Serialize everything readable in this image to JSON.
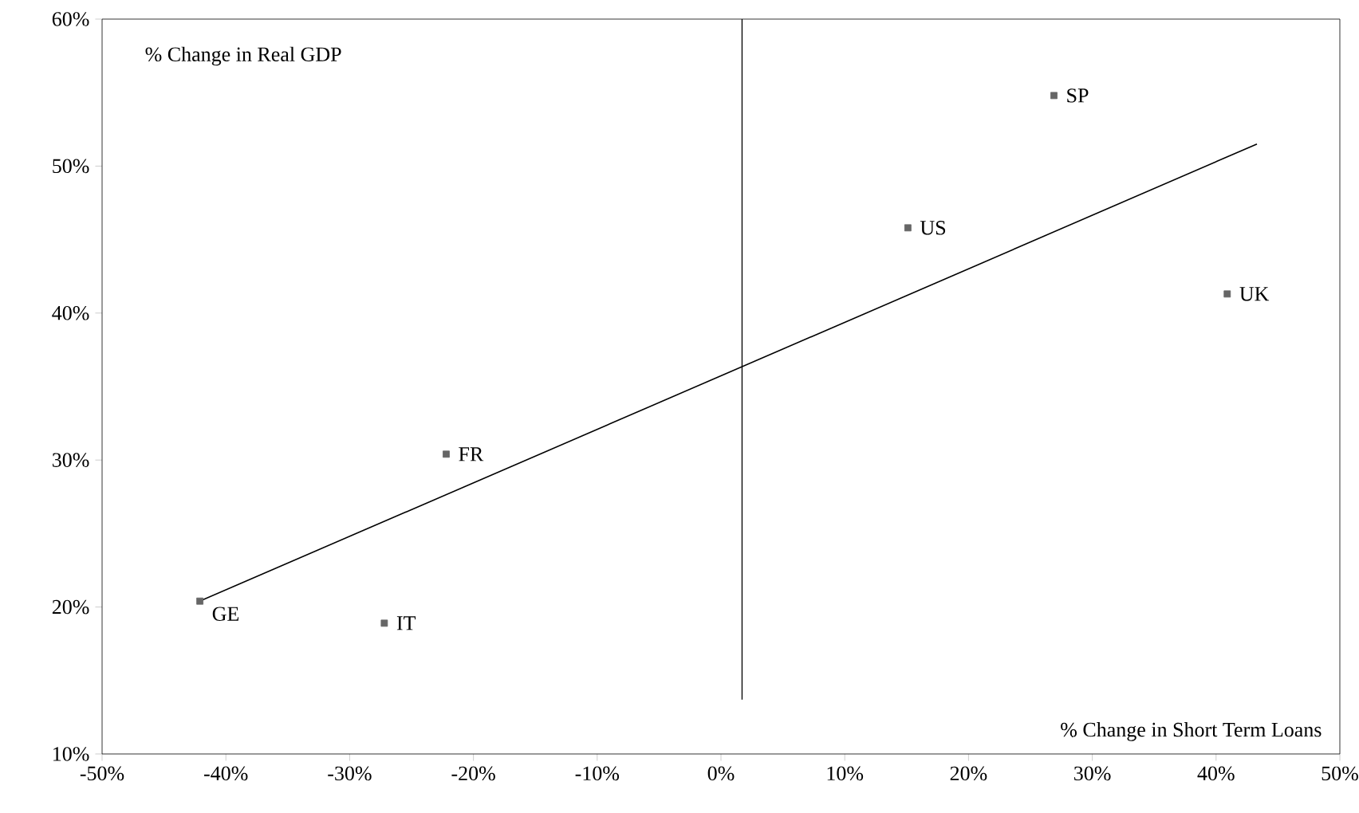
{
  "chart_data": {
    "type": "scatter",
    "xlabel": "% Change in Short Term Loans",
    "ylabel": "% Change in Real GDP",
    "xlim": [
      -50,
      50
    ],
    "ylim": [
      10,
      60
    ],
    "xticks": [
      {
        "value": -50,
        "label": "-50%"
      },
      {
        "value": -40,
        "label": "-40%"
      },
      {
        "value": -30,
        "label": "-30%"
      },
      {
        "value": -20,
        "label": "-20%"
      },
      {
        "value": -10,
        "label": "-10%"
      },
      {
        "value": 0,
        "label": "0%"
      },
      {
        "value": 10,
        "label": "10%"
      },
      {
        "value": 20,
        "label": "20%"
      },
      {
        "value": 30,
        "label": "30%"
      },
      {
        "value": 40,
        "label": "40%"
      },
      {
        "value": 50,
        "label": "50%"
      }
    ],
    "yticks": [
      {
        "value": 10,
        "label": "10%"
      },
      {
        "value": 20,
        "label": "20%"
      },
      {
        "value": 30,
        "label": "30%"
      },
      {
        "value": 40,
        "label": "40%"
      },
      {
        "value": 50,
        "label": "50%"
      },
      {
        "value": 60,
        "label": "60%"
      }
    ],
    "series": [
      {
        "marker": "square",
        "color": "#666666",
        "x": [
          -42.1,
          -27.2,
          -22.2,
          15.1,
          26.9,
          40.9
        ],
        "values": [
          20.4,
          18.9,
          30.4,
          45.8,
          54.8,
          41.3
        ]
      },
      {
        "type": "line",
        "marker": "none",
        "color": "#000000",
        "x": [
          -42.1,
          43.3
        ],
        "values": [
          20.4,
          51.5
        ]
      },
      {
        "type": "line",
        "marker": "none",
        "color": "#000000",
        "x": [
          1.7,
          1.7
        ],
        "values": [
          60,
          13.7
        ]
      }
    ],
    "annotations": [
      {
        "text": "GE",
        "x": -42.1,
        "y": 20.4
      },
      {
        "text": "IT",
        "x": -27.2,
        "y": 18.9
      },
      {
        "text": "FR",
        "x": -22.2,
        "y": 30.4
      },
      {
        "text": "US",
        "x": 15.1,
        "y": 45.8
      },
      {
        "text": "SP",
        "x": 26.9,
        "y": 54.8
      },
      {
        "text": "UK",
        "x": 40.9,
        "y": 41.3
      }
    ]
  }
}
